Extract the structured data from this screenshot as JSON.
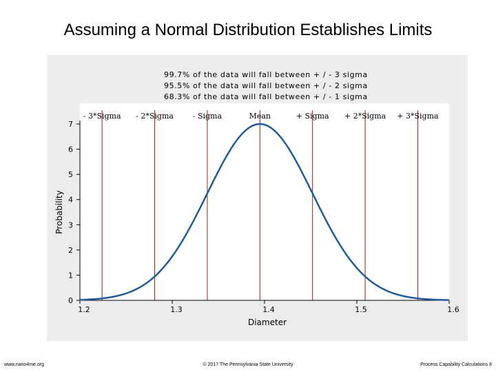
{
  "slide": {
    "title": "Assuming a Normal Distribution Establishes Limits",
    "footer_left": "www.nano4me.org",
    "footer_center": "© 2017 The Pennsylvania State University",
    "footer_right": "Process Capability Calculations 8"
  },
  "notes": [
    "99.7% of the data will fall between + / - 3 sigma",
    "95.5% of the data will fall between + / - 2 sigma",
    "68.3% of the data will fall between + / - 1 sigma"
  ],
  "colors": {
    "curve": "#1f5a9a",
    "sigma_lines": "#9b1c1c",
    "panel": "#ececec",
    "plot_bg": "#ffffff"
  },
  "chart_data": {
    "type": "line",
    "title": "",
    "xlabel": "Diameter",
    "ylabel": "Probability",
    "xlim": [
      1.2,
      1.6
    ],
    "ylim": [
      0,
      7
    ],
    "x_ticks": [
      1.2,
      1.3,
      1.4,
      1.5,
      1.6
    ],
    "x_tick_labels": [
      "1.2",
      "1.3",
      "1.4",
      "1.5",
      "1.6"
    ],
    "y_ticks": [
      0,
      1,
      2,
      3,
      4,
      5,
      6,
      7
    ],
    "y_tick_labels": [
      "0",
      "1",
      "2",
      "3",
      "4",
      "5",
      "6",
      "7"
    ],
    "grid": false,
    "distribution": {
      "kind": "normal",
      "mean": 1.395,
      "sigma": 0.057
    },
    "series": [
      {
        "x": [
          1.2,
          1.22,
          1.24,
          1.26,
          1.28,
          1.3,
          1.32,
          1.34,
          1.36,
          1.38,
          1.395,
          1.41,
          1.43,
          1.45,
          1.47,
          1.49,
          1.51,
          1.53,
          1.55,
          1.57,
          1.59,
          1.6
        ],
        "y": [
          0.02,
          0.06,
          0.17,
          0.42,
          0.91,
          1.75,
          2.94,
          4.36,
          5.75,
          6.75,
          7.0,
          6.75,
          5.75,
          4.36,
          2.94,
          1.75,
          0.91,
          0.42,
          0.17,
          0.06,
          0.02,
          0.01
        ]
      }
    ],
    "sigma_lines": [
      {
        "label": "- 3*Sigma",
        "x": 1.224
      },
      {
        "label": "- 2*Sigma",
        "x": 1.281
      },
      {
        "label": "- Sigma",
        "x": 1.338
      },
      {
        "label": "Mean",
        "x": 1.395
      },
      {
        "label": "+ Sigma",
        "x": 1.452
      },
      {
        "label": "+ 2*Sigma",
        "x": 1.509
      },
      {
        "label": "+ 3*Sigma",
        "x": 1.566
      }
    ]
  }
}
